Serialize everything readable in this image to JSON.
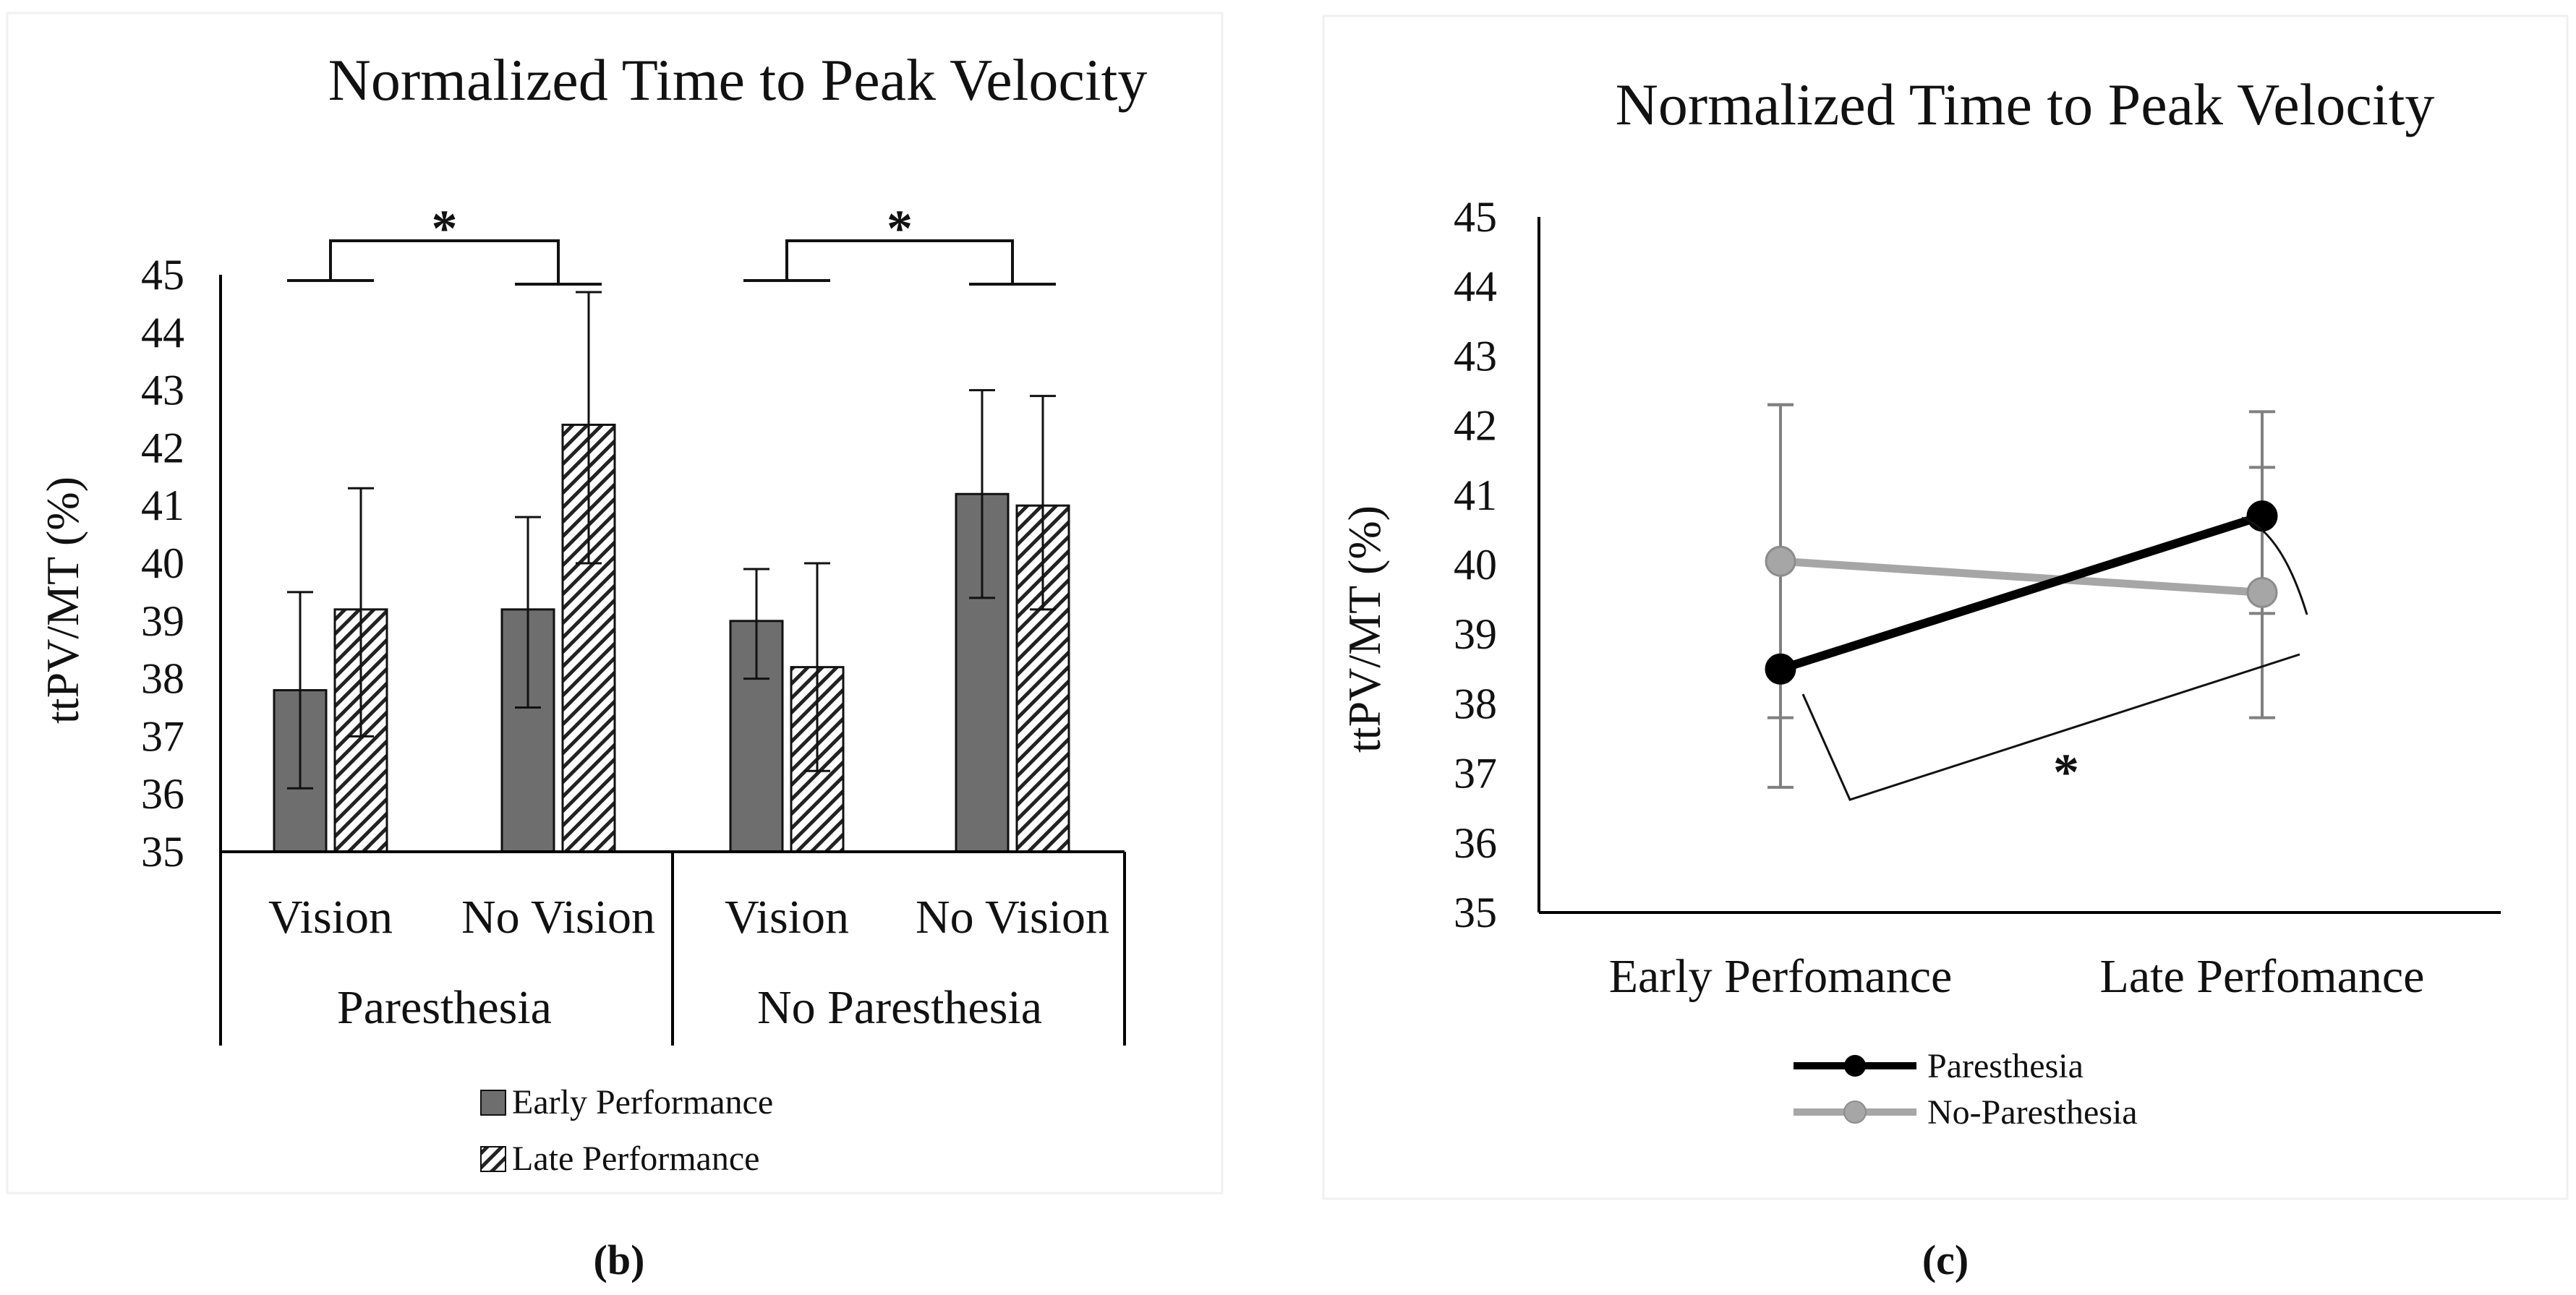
{
  "charts": [
    {
      "panel_label": "(b)",
      "chart_data": {
        "type": "bar",
        "title": "Normalized Time to Peak Velocity",
        "ylabel": "ttPV/MT (%)",
        "xlabel": "",
        "ylim": [
          35,
          45
        ],
        "yticks": [
          35,
          36,
          37,
          38,
          39,
          40,
          41,
          42,
          43,
          44,
          45
        ],
        "groups": [
          {
            "label": "Paresthesia",
            "categories": [
              "Vision",
              "No Vision"
            ]
          },
          {
            "label": "No Paresthesia",
            "categories": [
              "Vision",
              "No Vision"
            ]
          }
        ],
        "series": [
          {
            "name": "Early Performance",
            "pattern": "solid-gray",
            "color": "#6e6e6e",
            "values": [
              37.8,
              39.2,
              39.0,
              41.2
            ],
            "err_low": [
              36.1,
              37.5,
              38.0,
              39.4
            ],
            "err_high": [
              39.5,
              40.8,
              39.9,
              43.0
            ]
          },
          {
            "name": "Late Performance",
            "pattern": "diagonal-hatch",
            "color": "#222222",
            "values": [
              39.2,
              42.4,
              38.2,
              41.0
            ],
            "err_low": [
              37.0,
              40.0,
              36.4,
              39.2
            ],
            "err_high": [
              41.3,
              44.7,
              40.0,
              42.9
            ]
          }
        ],
        "legend": [
          "Early Performance",
          "Late Performance"
        ],
        "legend_position": "bottom",
        "annotations": [
          {
            "text": "*",
            "between": "Paresthesia: Vision vs No Vision"
          },
          {
            "text": "*",
            "between": "No Paresthesia: Vision vs No Vision"
          }
        ]
      }
    },
    {
      "panel_label": "(c)",
      "chart_data": {
        "type": "line",
        "title": "Normalized Time to Peak Velocity",
        "ylabel": "ttPV/MT (%)",
        "xlabel": "",
        "ylim": [
          35,
          45
        ],
        "yticks": [
          35,
          36,
          37,
          38,
          39,
          40,
          41,
          42,
          43,
          44,
          45
        ],
        "categories": [
          "Early Perfomance",
          "Late Perfomance"
        ],
        "series": [
          {
            "name": "Paresthesia",
            "color": "#000000",
            "values": [
              38.5,
              40.7
            ],
            "err_low": [
              36.8,
              39.3
            ],
            "err_high": [
              42.3,
              42.2
            ]
          },
          {
            "name": "No-Paresthesia",
            "color": "#a6a6a6",
            "values": [
              40.05,
              39.6
            ],
            "err_low": [
              37.8,
              37.8
            ],
            "err_high": [
              42.3,
              41.4
            ]
          }
        ],
        "legend": [
          "Paresthesia",
          "No-Paresthesia"
        ],
        "legend_position": "bottom",
        "annotations": [
          {
            "text": "*",
            "between": "Paresthesia: Early vs Late"
          }
        ]
      }
    }
  ]
}
